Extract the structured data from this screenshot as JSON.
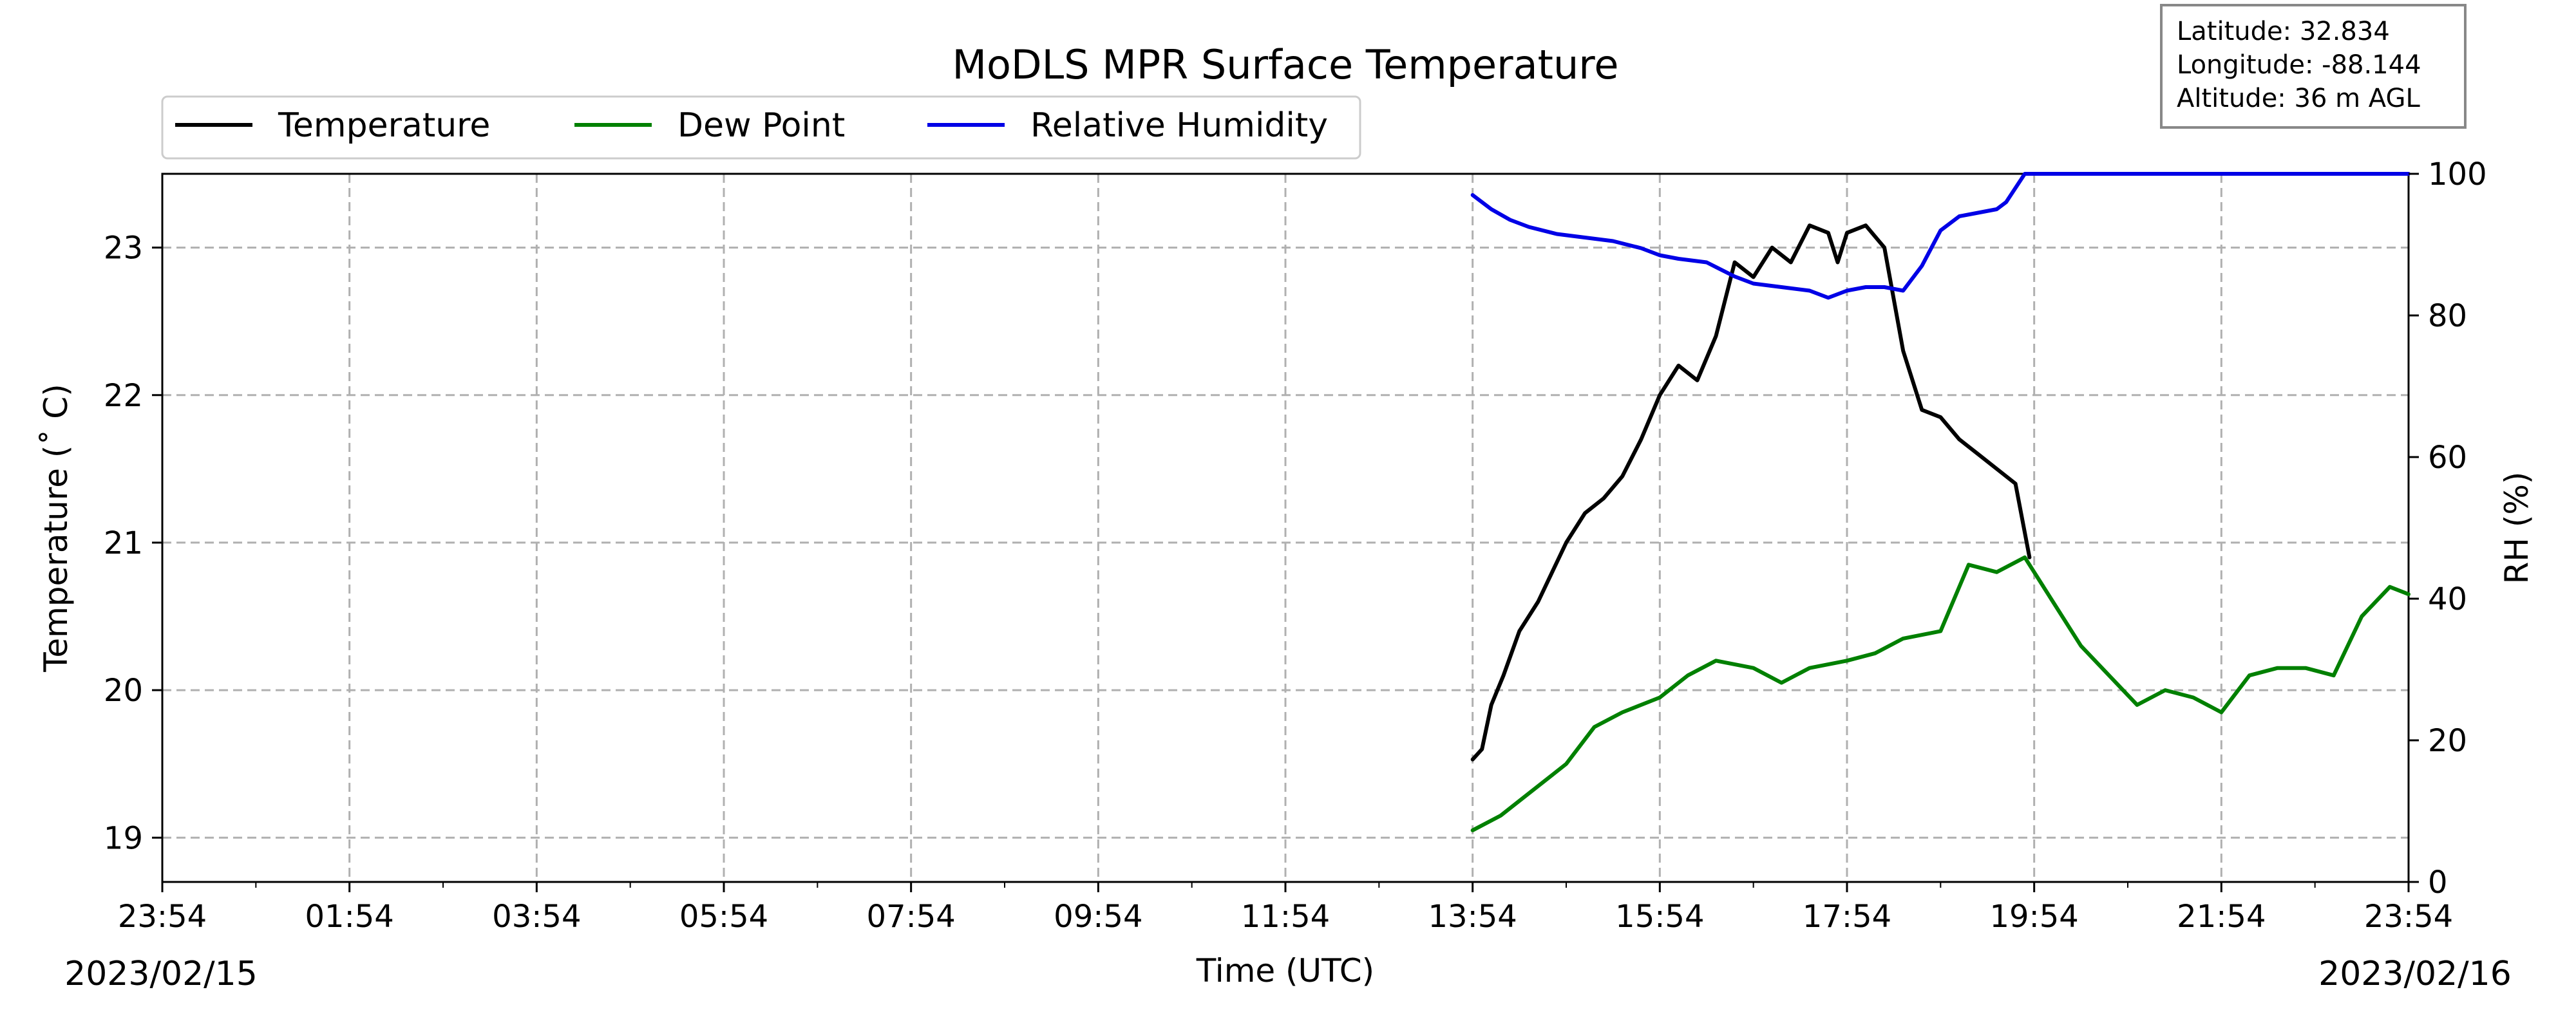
{
  "chart_data": {
    "type": "line",
    "title": "MoDLS MPR Surface Temperature",
    "xlabel": "Time (UTC)",
    "ylabel_left": "Temperature (˚ C)",
    "ylabel_right": "RH (%)",
    "x_tick_labels": [
      "23:54",
      "01:54",
      "03:54",
      "05:54",
      "07:54",
      "09:54",
      "11:54",
      "13:54",
      "15:54",
      "17:54",
      "19:54",
      "21:54",
      "23:54"
    ],
    "x_range_hours": [
      0,
      24
    ],
    "date_start": "2023/02/15",
    "date_end": "2023/02/16",
    "ylim_left": [
      18.7,
      23.5
    ],
    "y_ticks_left": [
      "19",
      "20",
      "21",
      "22",
      "23"
    ],
    "ylim_right": [
      0,
      100
    ],
    "y_ticks_right": [
      "0",
      "20",
      "40",
      "60",
      "80",
      "100"
    ],
    "grid": true,
    "legend_position": "top-left, above plot",
    "info_box": [
      "Latitude: 32.834",
      "Longitude: -88.144",
      "Altitude: 36 m AGL"
    ],
    "series": [
      {
        "name": "Temperature",
        "axis": "left",
        "color": "#000000",
        "x": [
          14.0,
          14.1,
          14.2,
          14.33,
          14.5,
          14.7,
          14.85,
          15.0,
          15.2,
          15.4,
          15.6,
          15.8,
          16.0,
          16.2,
          16.4,
          16.6,
          16.8,
          17.0,
          17.2,
          17.4,
          17.6,
          17.8,
          17.9,
          18.0,
          18.2,
          18.4,
          18.6,
          18.8,
          19.0,
          19.2,
          19.4,
          19.6,
          19.8,
          19.95
        ],
        "y": [
          19.53,
          19.6,
          19.9,
          20.1,
          20.4,
          20.6,
          20.8,
          21.0,
          21.2,
          21.3,
          21.45,
          21.7,
          22.0,
          22.2,
          22.1,
          22.4,
          22.9,
          22.8,
          23.0,
          22.9,
          23.15,
          23.1,
          22.9,
          23.1,
          23.15,
          23.0,
          22.3,
          21.9,
          21.85,
          21.7,
          21.6,
          21.5,
          21.4,
          20.9
        ]
      },
      {
        "name": "Dew Point",
        "axis": "left",
        "color": "#008000",
        "x": [
          14.0,
          14.3,
          14.6,
          15.0,
          15.3,
          15.6,
          16.0,
          16.3,
          16.6,
          17.0,
          17.3,
          17.6,
          18.0,
          18.3,
          18.6,
          19.0,
          19.3,
          19.6,
          19.9,
          20.2,
          20.5,
          20.8,
          21.1,
          21.4,
          21.7,
          22.0,
          22.3,
          22.6,
          22.9,
          23.2,
          23.5,
          23.8,
          24.0
        ],
        "y": [
          19.05,
          19.15,
          19.3,
          19.5,
          19.75,
          19.85,
          19.95,
          20.1,
          20.2,
          20.15,
          20.05,
          20.15,
          20.2,
          20.25,
          20.35,
          20.4,
          20.85,
          20.8,
          20.9,
          20.6,
          20.3,
          20.1,
          19.9,
          20.0,
          19.95,
          19.85,
          20.1,
          20.15,
          20.15,
          20.1,
          20.5,
          20.7,
          20.65
        ]
      },
      {
        "name": "Relative Humidity",
        "axis": "right",
        "color": "#0000e6",
        "x": [
          14.0,
          14.2,
          14.4,
          14.6,
          14.9,
          15.2,
          15.5,
          15.8,
          16.0,
          16.2,
          16.5,
          16.8,
          17.0,
          17.3,
          17.6,
          17.8,
          18.0,
          18.2,
          18.4,
          18.6,
          18.8,
          19.0,
          19.2,
          19.4,
          19.6,
          19.7,
          19.8,
          19.9,
          20.0,
          20.5,
          21.0,
          22.0,
          23.0,
          24.0
        ],
        "y": [
          97,
          95,
          93.5,
          92.5,
          91.5,
          91,
          90.5,
          89.5,
          88.5,
          88,
          87.5,
          85.5,
          84.5,
          84,
          83.5,
          82.5,
          83.5,
          84,
          84,
          83.5,
          87,
          92,
          94,
          94.5,
          95,
          96,
          98,
          100,
          100,
          100,
          100,
          100,
          100,
          100
        ]
      }
    ]
  }
}
